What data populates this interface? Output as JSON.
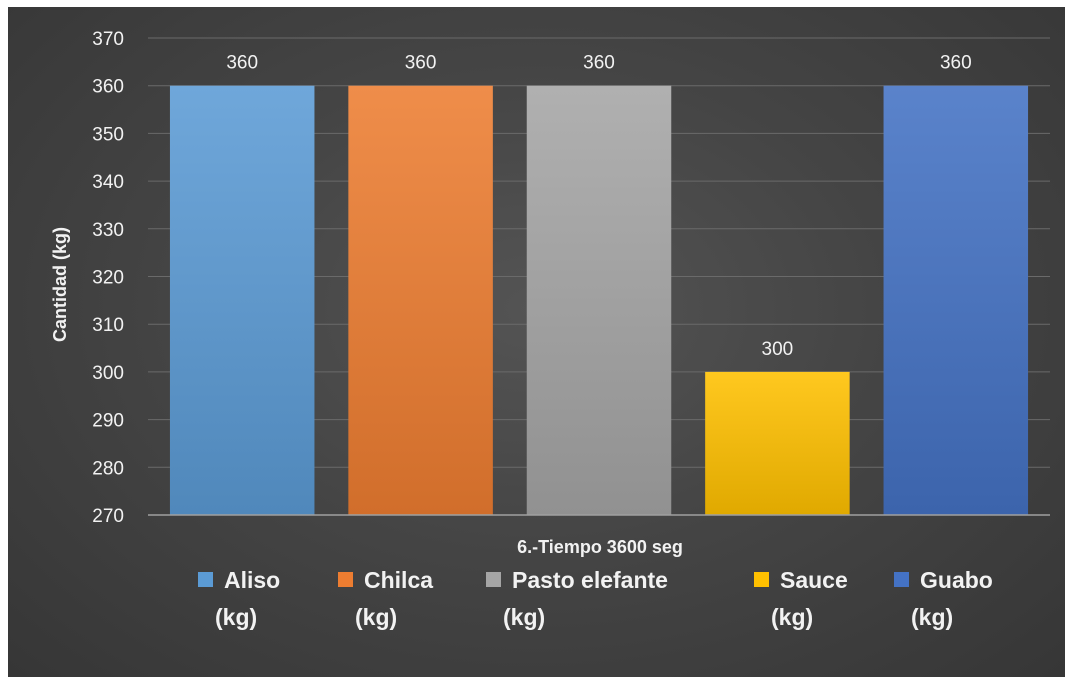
{
  "chart_data": {
    "type": "bar",
    "title": "",
    "xlabel": "6.-Tiempo 3600 seg",
    "ylabel": "Cantidad (kg)",
    "ylim": [
      270,
      370
    ],
    "yticks": [
      270,
      280,
      290,
      300,
      310,
      320,
      330,
      340,
      350,
      360,
      370
    ],
    "grid": true,
    "legend_position": "bottom",
    "series": [
      {
        "name": "Aliso (kg)",
        "legend_lines": [
          "Aliso",
          "(kg)"
        ],
        "values": [
          360
        ],
        "color": "#5b9bd5"
      },
      {
        "name": "Chilca (kg)",
        "legend_lines": [
          "Chilca",
          "(kg)"
        ],
        "values": [
          360
        ],
        "color": "#ed7d31"
      },
      {
        "name": "Pasto elefante (kg)",
        "legend_lines": [
          "Pasto elefante",
          "(kg)"
        ],
        "values": [
          360
        ],
        "color": "#a5a5a5"
      },
      {
        "name": "Sauce (kg)",
        "legend_lines": [
          "Sauce",
          "(kg)"
        ],
        "values": [
          300
        ],
        "color": "#ffc000"
      },
      {
        "name": "Guabo (kg)",
        "legend_lines": [
          "Guabo",
          "(kg)"
        ],
        "values": [
          360
        ],
        "color": "#4472c4"
      }
    ]
  }
}
